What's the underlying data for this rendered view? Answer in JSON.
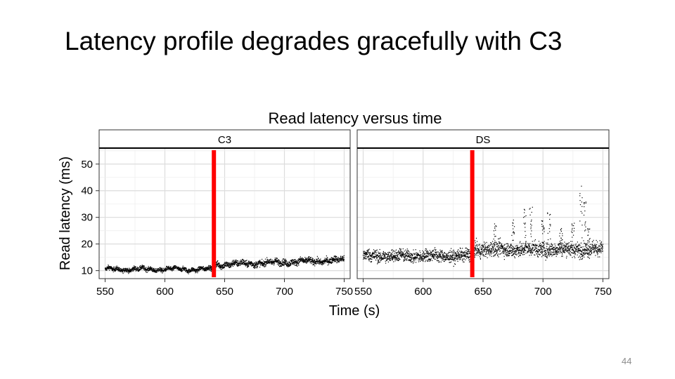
{
  "slide": {
    "title": "Latency profile degrades gracefully with C3",
    "page_number": "44"
  },
  "chart_data": {
    "type": "scatter",
    "title": "Read latency versus time",
    "xlabel": "Time (s)",
    "ylabel": "Read latency (ms)",
    "xlim": [
      545,
      755
    ],
    "ylim": [
      7,
      56
    ],
    "xticks": [
      550,
      600,
      650,
      700,
      750
    ],
    "yticks": [
      10,
      20,
      30,
      40,
      50
    ],
    "grid": true,
    "marker_line_x": 641,
    "marker_color": "#ff0000",
    "panels": [
      {
        "name": "C3",
        "points_summary": "dense points from 550 to 750 s; about 10-11 ms before 641 s, rising to about 12-15 ms after",
        "series": [
          {
            "x_range": [
              550,
              641
            ],
            "median": 10.5,
            "spread": 1.8
          },
          {
            "x_range": [
              641,
              750
            ],
            "median_start": 12.2,
            "median_end": 14.0,
            "spread": 2.6
          }
        ],
        "sample_points": [
          [
            550,
            10.3
          ],
          [
            575,
            10.6
          ],
          [
            600,
            10.2
          ],
          [
            625,
            10.8
          ],
          [
            640,
            11.0
          ],
          [
            660,
            13.2
          ],
          [
            680,
            13.5
          ],
          [
            700,
            13.6
          ],
          [
            725,
            14.0
          ],
          [
            750,
            13.8
          ]
        ]
      },
      {
        "name": "DS",
        "points_summary": "dense points from 550 to 750 s; about 12-22 ms before 641 s, about 15-25 ms after with spikes up to ~42 ms",
        "series": [
          {
            "x_range": [
              550,
              641
            ],
            "median": 15.5,
            "spread": 5.0
          },
          {
            "x_range": [
              641,
              750
            ],
            "median": 18.0,
            "spread": 6.0
          }
        ],
        "spikes": [
          [
            660,
            28
          ],
          [
            675,
            30
          ],
          [
            685,
            36
          ],
          [
            690,
            34
          ],
          [
            700,
            29
          ],
          [
            705,
            33
          ],
          [
            715,
            27
          ],
          [
            725,
            30
          ],
          [
            732,
            42
          ],
          [
            735,
            36
          ],
          [
            738,
            27
          ]
        ],
        "sample_points": [
          [
            550,
            15.0
          ],
          [
            575,
            16.0
          ],
          [
            600,
            15.0
          ],
          [
            625,
            15.5
          ],
          [
            640,
            16.0
          ],
          [
            660,
            19.0
          ],
          [
            680,
            18.5
          ],
          [
            700,
            18.0
          ],
          [
            725,
            17.5
          ],
          [
            750,
            17.0
          ]
        ]
      }
    ],
    "colors": {
      "points": "#000000",
      "strip_bg": "#ffffff",
      "panel_border": "#333333",
      "grid": "#e3e3e3"
    }
  }
}
